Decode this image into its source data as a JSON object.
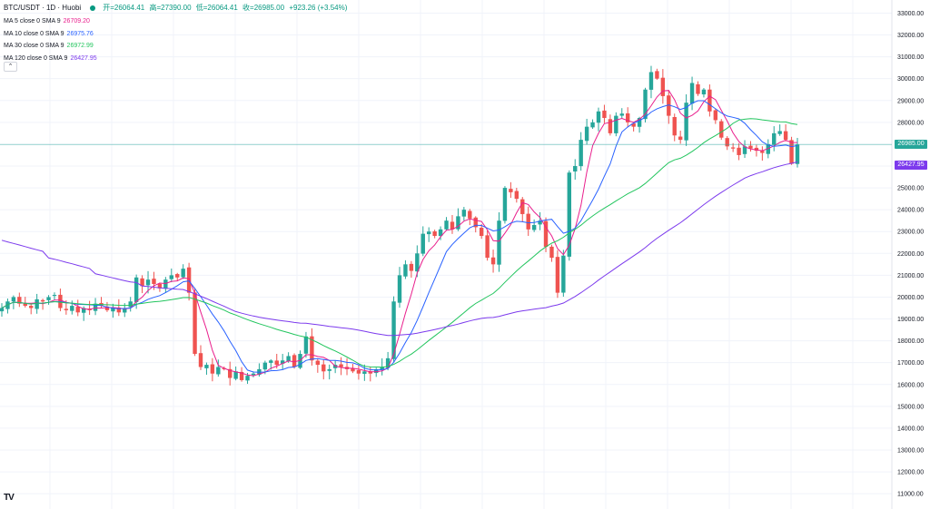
{
  "header": {
    "symbol": "BTC/USDT · 1D · Huobi",
    "open": "开=26064.41",
    "high": "高=27390.00",
    "low": "低=26064.41",
    "close": "收=26985.00",
    "change": "+923.26 (+3.54%)"
  },
  "indicators": [
    {
      "label": "MA 5 close 0 SMA 9",
      "value": "26709.20",
      "color": "#e91e8c"
    },
    {
      "label": "MA 10 close 0 SMA 9",
      "value": "26975.76",
      "color": "#2962ff"
    },
    {
      "label": "MA 30 close 0 SMA 9",
      "value": "26972.99",
      "color": "#22c55e"
    },
    {
      "label": "MA 120 close 0 SMA 9",
      "value": "26427.95",
      "color": "#7c3aed"
    }
  ],
  "collapse_icon": "chevron-up-icon",
  "logo_text": "TV",
  "colors": {
    "up": "#26a69a",
    "down": "#ef5350",
    "grid": "#f0f3fa",
    "axis_text": "#131722"
  },
  "price_tags": [
    {
      "value": "26985.00",
      "color": "#26a69a",
      "price": 26985
    },
    {
      "value": "26427.95",
      "color": "#7c3aed",
      "price": 26427.95
    }
  ],
  "chart_data": {
    "type": "line",
    "y_axis": {
      "ticks": [
        "33000.00",
        "32000.00",
        "31000.00",
        "30000.00",
        "29000.00",
        "28000.00",
        "27000.00",
        "26000.00",
        "25000.00",
        "24000.00",
        "23000.00",
        "22000.00",
        "21000.00",
        "20000.00",
        "19000.00",
        "18000.00",
        "17000.00",
        "16000.00",
        "15000.00",
        "14000.00",
        "13000.00",
        "12000.00",
        "11000.00"
      ],
      "ylim": [
        10300,
        33600
      ]
    },
    "close_series": [
      19500,
      19800,
      20000,
      19700,
      19600,
      19500,
      19900,
      19800,
      20000,
      20100,
      19500,
      19400,
      19600,
      19300,
      19500,
      19400,
      19700,
      19600,
      19400,
      19500,
      19300,
      19500,
      19800,
      20900,
      20500,
      20800,
      20600,
      20400,
      20800,
      21000,
      20900,
      21300,
      20200,
      17400,
      16800,
      16900,
      16500,
      16800,
      16700,
      16300,
      16600,
      16200,
      16400,
      16500,
      16700,
      17000,
      17100,
      16900,
      17100,
      17300,
      16800,
      17400,
      18200,
      17100,
      16900,
      16600,
      16700,
      16900,
      16800,
      16700,
      16600,
      16500,
      16600,
      16500,
      16700,
      16800,
      17200,
      19800,
      21000,
      21500,
      21200,
      22000,
      22900,
      23000,
      22800,
      23100,
      23500,
      23100,
      23700,
      24000,
      23600,
      23200,
      22800,
      21800,
      21500,
      23500,
      25000,
      24800,
      24500,
      23800,
      23100,
      23300,
      23500,
      22300,
      21800,
      20200,
      21900,
      25700,
      26000,
      27200,
      27800,
      28000,
      28500,
      28200,
      27500,
      28300,
      28400,
      28000,
      27800,
      28200,
      29500,
      30300,
      30000,
      29200,
      28300,
      27400,
      27200,
      28900,
      29800,
      29300,
      29500,
      28500,
      28100,
      27300,
      26900,
      26800,
      26500,
      26900,
      26800,
      26700,
      26600,
      27000,
      27500,
      27600,
      27200,
      26100,
      26985
    ],
    "series": [
      {
        "name": "MA 5",
        "current": 26709.2
      },
      {
        "name": "MA 10",
        "current": 26975.76
      },
      {
        "name": "MA 30",
        "current": 26972.99
      },
      {
        "name": "MA 120",
        "current": 26427.95
      }
    ],
    "grid": true,
    "legend": "top-left"
  }
}
